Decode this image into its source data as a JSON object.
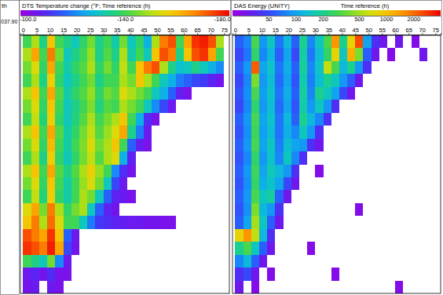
{
  "chart_data": [
    {
      "type": "heatmap",
      "title": "DTS Temperature change (°F; Time reference (h)",
      "xlim": [
        -1,
        77
      ],
      "xticks": [
        0,
        5,
        10,
        15,
        20,
        25,
        30,
        35,
        40,
        45,
        50,
        55,
        60,
        65,
        70,
        75
      ],
      "ylim": [
        0,
        20
      ],
      "tick_labels": "x",
      "xbins": [
        0,
        3,
        6,
        9,
        12,
        15,
        18,
        21,
        24,
        27,
        30,
        33,
        36,
        39,
        42,
        45,
        48,
        51,
        54,
        57,
        60,
        63,
        66,
        69,
        72,
        75
      ],
      "ybins": [
        0,
        1,
        2,
        3,
        4,
        5,
        6,
        7,
        8,
        9,
        10,
        11,
        12,
        13,
        14,
        15,
        16,
        17,
        18,
        19,
        20
      ],
      "colorbar": {
        "range": [
          -97,
          -183
        ],
        "ticks": [
          {
            "value": -100,
            "label": "-100.0"
          },
          {
            "value": -140,
            "label": "-140.0"
          },
          {
            "value": -180,
            "label": "-180.0"
          }
        ]
      },
      "z": [
        [
          -140,
          -150,
          -135,
          -160,
          -140,
          -135,
          -130,
          -138,
          -145,
          -135,
          -140,
          -132,
          -145,
          -130,
          -138,
          -125,
          -150,
          -170,
          -175,
          -140,
          -165,
          -178,
          -180,
          -175,
          -150
        ],
        [
          -150,
          -165,
          -140,
          -170,
          -145,
          -130,
          -135,
          -140,
          -148,
          -135,
          -142,
          -135,
          -150,
          -132,
          -140,
          -130,
          -160,
          -175,
          -170,
          -135,
          -160,
          -175,
          -178,
          -165,
          -140
        ],
        [
          -145,
          -155,
          -138,
          -165,
          -140,
          -132,
          -138,
          -142,
          -150,
          -138,
          -145,
          -138,
          -152,
          -140,
          -160,
          -170,
          -175,
          -150,
          -135,
          -128,
          -130,
          -135,
          -130,
          -125,
          -120
        ],
        [
          -140,
          -150,
          -135,
          -158,
          -138,
          -130,
          -135,
          -140,
          -145,
          -135,
          -140,
          -140,
          -150,
          -145,
          -160,
          -150,
          -140,
          -130,
          -125,
          -118,
          -115,
          -112,
          -110,
          -106,
          -103
        ],
        [
          -150,
          -160,
          -140,
          -165,
          -142,
          -132,
          -138,
          -142,
          -148,
          -138,
          -145,
          -142,
          -155,
          -150,
          -145,
          -140,
          -130,
          -125,
          -115,
          -105,
          -102,
          null,
          null,
          null,
          null
        ],
        [
          -145,
          -155,
          -138,
          -160,
          -140,
          -130,
          -135,
          -140,
          -146,
          -136,
          -142,
          -140,
          -150,
          -145,
          -140,
          -130,
          -120,
          -112,
          -104,
          null,
          null,
          null,
          null,
          null,
          null
        ],
        [
          -140,
          -152,
          -136,
          -158,
          -138,
          -130,
          -136,
          -142,
          -150,
          -140,
          -145,
          -150,
          -160,
          -140,
          -125,
          -108,
          -102,
          null,
          null,
          null,
          null,
          null,
          null,
          null,
          null
        ],
        [
          -150,
          -160,
          -140,
          -165,
          -142,
          -132,
          -138,
          -145,
          -152,
          -142,
          -148,
          -155,
          -165,
          -135,
          -118,
          -104,
          null,
          null,
          null,
          null,
          null,
          null,
          null,
          null,
          null
        ],
        [
          -145,
          -155,
          -138,
          -162,
          -140,
          -132,
          -140,
          -146,
          -155,
          -145,
          -150,
          -160,
          -140,
          -115,
          -105,
          -102,
          null,
          null,
          null,
          null,
          null,
          null,
          null,
          null,
          null
        ],
        [
          -140,
          -150,
          -135,
          -158,
          -138,
          -130,
          -138,
          -145,
          -152,
          -142,
          -150,
          -155,
          -125,
          -106,
          null,
          null,
          null,
          null,
          null,
          null,
          null,
          null,
          null,
          null,
          null
        ],
        [
          -150,
          -160,
          -140,
          -165,
          -142,
          -135,
          -142,
          -150,
          -158,
          -148,
          -140,
          -120,
          -108,
          -103,
          null,
          null,
          null,
          null,
          null,
          null,
          null,
          null,
          null,
          null,
          null
        ],
        [
          -145,
          -155,
          -138,
          -160,
          -140,
          -132,
          -140,
          -148,
          -155,
          -145,
          -130,
          -112,
          -104,
          null,
          null,
          null,
          null,
          null,
          null,
          null,
          null,
          null,
          null,
          null,
          null
        ],
        [
          -140,
          -152,
          -136,
          -158,
          -138,
          -132,
          -140,
          -150,
          -145,
          -130,
          -115,
          -106,
          -104,
          -102,
          null,
          null,
          null,
          null,
          null,
          null,
          null,
          null,
          null,
          null,
          null
        ],
        [
          -155,
          -165,
          -145,
          -170,
          -150,
          -138,
          -145,
          -150,
          -130,
          -115,
          -106,
          -103,
          null,
          null,
          null,
          null,
          null,
          null,
          null,
          null,
          null,
          null,
          null,
          null,
          null
        ],
        [
          -160,
          -170,
          -150,
          -172,
          -155,
          -140,
          -140,
          -130,
          -118,
          -110,
          -108,
          -106,
          -105,
          -104,
          -104,
          -103,
          -103,
          -102,
          -102,
          null,
          null,
          null,
          null,
          null,
          null
        ],
        [
          -175,
          -170,
          -165,
          -178,
          -160,
          -115,
          -104,
          null,
          null,
          null,
          null,
          null,
          null,
          null,
          null,
          null,
          null,
          null,
          null,
          null,
          null,
          null,
          null,
          null,
          null
        ],
        [
          -178,
          -175,
          -170,
          -180,
          -165,
          -112,
          -103,
          null,
          null,
          null,
          null,
          null,
          null,
          null,
          null,
          null,
          null,
          null,
          null,
          null,
          null,
          null,
          null,
          null,
          null
        ],
        [
          -140,
          -135,
          -130,
          -145,
          -120,
          -104,
          null,
          null,
          null,
          null,
          null,
          null,
          null,
          null,
          null,
          null,
          null,
          null,
          null,
          null,
          null,
          null,
          null,
          null,
          null
        ],
        [
          -104,
          -106,
          -103,
          -108,
          -102,
          -102,
          null,
          null,
          null,
          null,
          null,
          null,
          null,
          null,
          null,
          null,
          null,
          null,
          null,
          null,
          null,
          null,
          null,
          null,
          null
        ],
        [
          -103,
          -104,
          null,
          -104,
          -102,
          null,
          null,
          null,
          null,
          null,
          null,
          null,
          null,
          null,
          null,
          null,
          null,
          null,
          null,
          null,
          null,
          null,
          null,
          null,
          null
        ]
      ]
    },
    {
      "type": "heatmap",
      "title": "DAS Energy (UNITY)",
      "xlabel": "Time reference (h)",
      "xlim": [
        -1,
        77
      ],
      "xticks": [
        0,
        5,
        10,
        15,
        20,
        25,
        30,
        35,
        40,
        45,
        50,
        55,
        60,
        65,
        70,
        75
      ],
      "ylim": [
        0,
        20
      ],
      "tick_labels": "x",
      "xbins": [
        0,
        3,
        6,
        9,
        12,
        15,
        18,
        21,
        24,
        27,
        30,
        33,
        36,
        39,
        42,
        45,
        48,
        51,
        54,
        57,
        60,
        63,
        66,
        69,
        72,
        75
      ],
      "ybins": [
        0,
        1,
        2,
        3,
        4,
        5,
        6,
        7,
        8,
        9,
        10,
        11,
        12,
        13,
        14,
        15,
        16,
        17,
        18,
        19,
        20
      ],
      "colorbar": {
        "range": [
          20,
          4000
        ],
        "log": true,
        "ticks": [
          50,
          100,
          200,
          500,
          1000,
          2000
        ]
      },
      "z": [
        [
          60,
          80,
          300,
          90,
          150,
          70,
          120,
          60,
          200,
          80,
          150,
          300,
          1500,
          200,
          800,
          2500,
          100,
          40,
          30,
          null,
          30,
          null,
          25,
          null,
          null
        ],
        [
          50,
          70,
          250,
          80,
          120,
          60,
          100,
          50,
          180,
          70,
          130,
          250,
          800,
          150,
          1200,
          400,
          60,
          30,
          null,
          25,
          null,
          null,
          null,
          30,
          null
        ],
        [
          60,
          90,
          2200,
          100,
          140,
          70,
          110,
          60,
          190,
          80,
          140,
          600,
          300,
          120,
          200,
          90,
          40,
          null,
          null,
          null,
          null,
          null,
          null,
          null,
          null
        ],
        [
          50,
          80,
          400,
          90,
          130,
          65,
          100,
          55,
          170,
          75,
          130,
          200,
          150,
          90,
          60,
          30,
          null,
          null,
          null,
          null,
          null,
          null,
          null,
          null,
          null
        ],
        [
          55,
          85,
          300,
          95,
          140,
          70,
          110,
          60,
          180,
          80,
          200,
          150,
          100,
          50,
          30,
          null,
          null,
          null,
          null,
          null,
          null,
          null,
          null,
          null,
          null
        ],
        [
          50,
          80,
          250,
          90,
          130,
          65,
          100,
          55,
          170,
          90,
          150,
          90,
          40,
          null,
          null,
          null,
          null,
          null,
          null,
          null,
          null,
          null,
          null,
          null,
          null
        ],
        [
          60,
          90,
          300,
          100,
          140,
          70,
          120,
          60,
          200,
          120,
          80,
          40,
          null,
          null,
          null,
          null,
          null,
          null,
          null,
          null,
          null,
          null,
          null,
          null,
          null
        ],
        [
          55,
          85,
          280,
          95,
          130,
          70,
          110,
          80,
          150,
          90,
          40,
          null,
          null,
          null,
          null,
          null,
          null,
          null,
          null,
          null,
          null,
          null,
          null,
          null,
          null
        ],
        [
          60,
          90,
          300,
          100,
          150,
          75,
          130,
          100,
          90,
          40,
          30,
          null,
          null,
          null,
          null,
          null,
          null,
          null,
          null,
          null,
          null,
          null,
          null,
          null,
          null
        ],
        [
          55,
          80,
          250,
          90,
          140,
          80,
          150,
          80,
          40,
          null,
          null,
          null,
          null,
          null,
          null,
          null,
          null,
          null,
          null,
          null,
          null,
          null,
          null,
          null,
          null
        ],
        [
          60,
          90,
          280,
          100,
          160,
          120,
          90,
          40,
          null,
          null,
          25,
          null,
          null,
          null,
          null,
          null,
          null,
          null,
          null,
          null,
          null,
          null,
          null,
          null,
          null
        ],
        [
          55,
          85,
          260,
          110,
          140,
          100,
          50,
          30,
          null,
          null,
          null,
          null,
          null,
          null,
          null,
          null,
          null,
          null,
          null,
          null,
          null,
          null,
          null,
          null,
          null
        ],
        [
          60,
          90,
          300,
          150,
          180,
          60,
          30,
          null,
          null,
          null,
          null,
          null,
          null,
          null,
          null,
          null,
          null,
          null,
          null,
          null,
          null,
          null,
          null,
          null,
          null
        ],
        [
          55,
          85,
          400,
          120,
          90,
          40,
          null,
          null,
          null,
          null,
          null,
          null,
          null,
          null,
          null,
          25,
          null,
          null,
          null,
          null,
          null,
          null,
          null,
          null,
          null
        ],
        [
          60,
          100,
          500,
          150,
          60,
          30,
          null,
          null,
          null,
          null,
          null,
          null,
          null,
          null,
          null,
          null,
          null,
          null,
          null,
          null,
          null,
          null,
          null,
          null,
          null
        ],
        [
          800,
          1500,
          600,
          120,
          40,
          null,
          null,
          null,
          null,
          null,
          null,
          null,
          null,
          null,
          null,
          null,
          null,
          null,
          null,
          null,
          null,
          null,
          null,
          null,
          null
        ],
        [
          200,
          300,
          150,
          60,
          30,
          null,
          null,
          null,
          null,
          25,
          null,
          null,
          null,
          null,
          null,
          null,
          null,
          null,
          null,
          null,
          null,
          null,
          null,
          null,
          null
        ],
        [
          80,
          120,
          60,
          30,
          null,
          null,
          null,
          null,
          null,
          null,
          null,
          null,
          null,
          null,
          null,
          null,
          null,
          null,
          null,
          null,
          null,
          null,
          null,
          null,
          null
        ],
        [
          40,
          50,
          30,
          null,
          25,
          null,
          null,
          null,
          null,
          null,
          null,
          null,
          25,
          null,
          null,
          null,
          null,
          null,
          null,
          null,
          null,
          null,
          null,
          null,
          null
        ],
        [
          30,
          null,
          25,
          null,
          null,
          null,
          null,
          null,
          null,
          null,
          null,
          null,
          null,
          null,
          null,
          null,
          null,
          null,
          null,
          null,
          25,
          null,
          null,
          null,
          null
        ]
      ]
    }
  ],
  "depth_track": {
    "label": "th",
    "top_text": "037.90"
  }
}
